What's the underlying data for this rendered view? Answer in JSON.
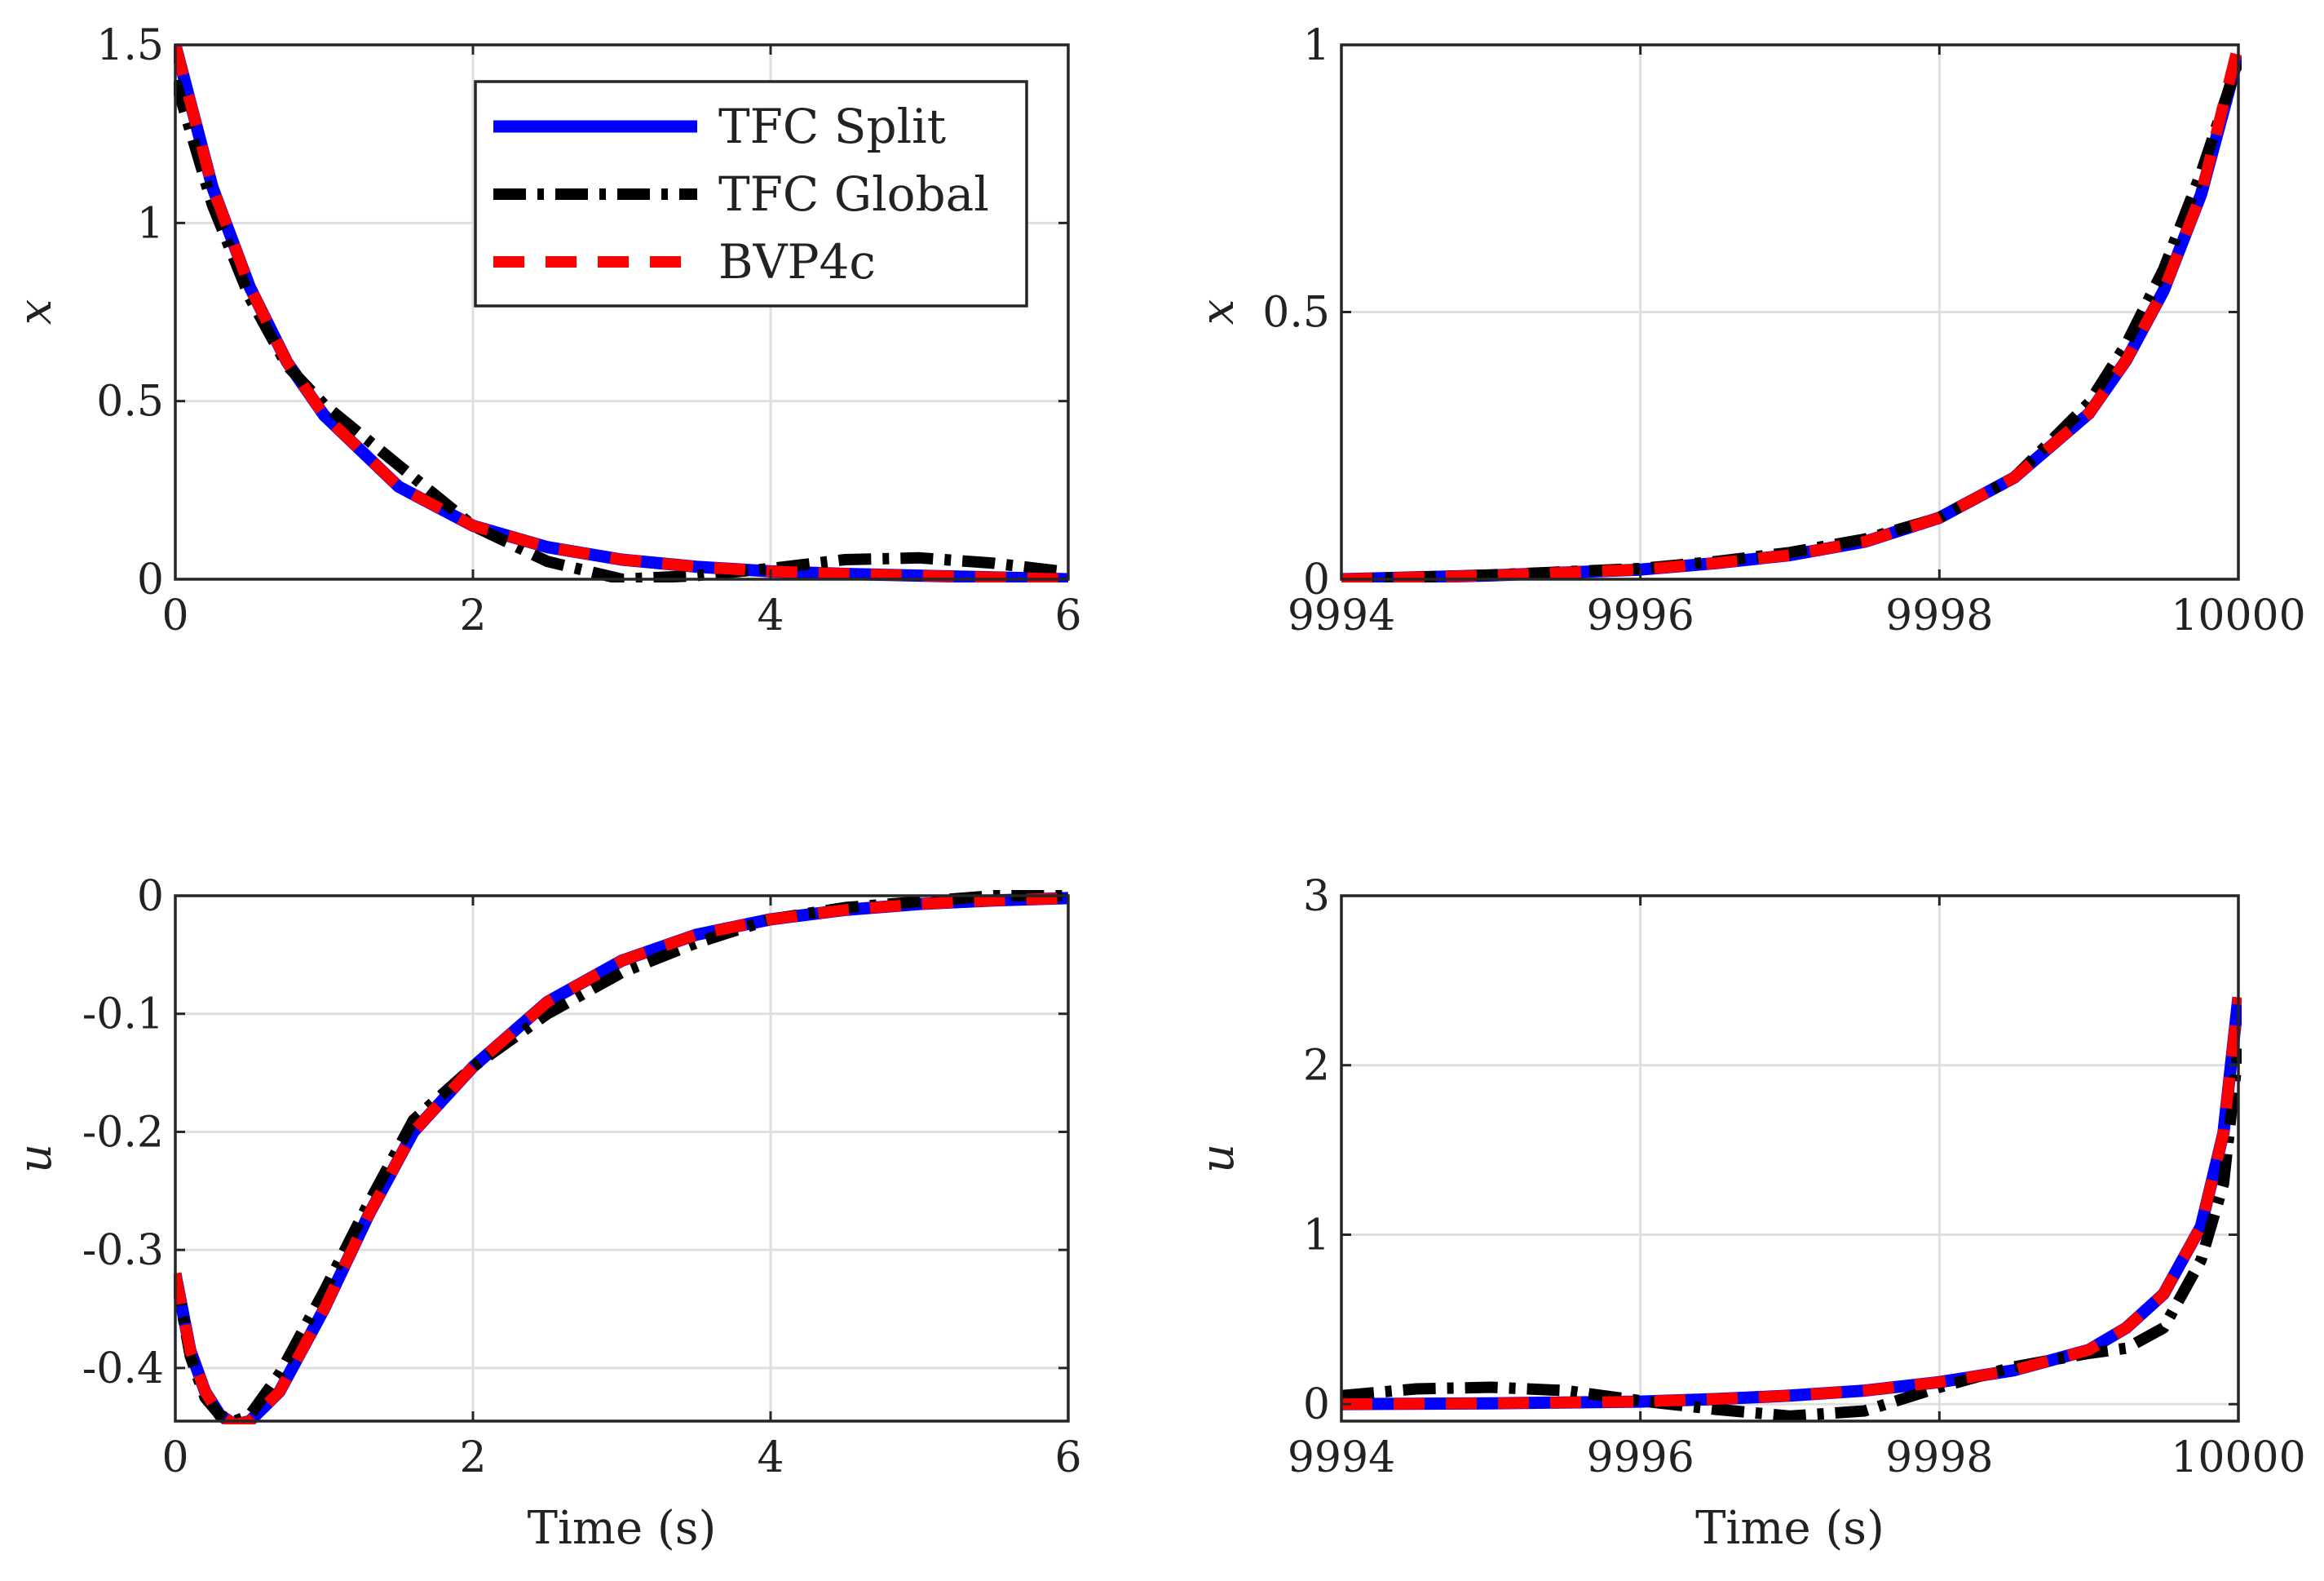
{
  "chart_data": [
    {
      "type": "line",
      "id": "x-early",
      "xlabel": "",
      "ylabel": "x",
      "xlim": [
        0,
        6
      ],
      "ylim": [
        0,
        1.5
      ],
      "xticks": [
        "0",
        "2",
        "4",
        "6"
      ],
      "yticks": [
        "0",
        "0.5",
        "1",
        "1.5"
      ],
      "legend": {
        "placement": "top-right",
        "entries": [
          "TFC Split",
          "TFC Global",
          "BVP4c"
        ]
      },
      "series": [
        {
          "name": "TFC Split",
          "color": "#0000ff",
          "style": "solid",
          "x": [
            0,
            0.25,
            0.5,
            0.75,
            1,
            1.5,
            2,
            2.5,
            3,
            3.5,
            4,
            4.5,
            5,
            5.5,
            6
          ],
          "values": [
            1.5,
            1.1,
            0.82,
            0.61,
            0.46,
            0.26,
            0.15,
            0.09,
            0.055,
            0.035,
            0.022,
            0.015,
            0.01,
            0.005,
            0.0
          ]
        },
        {
          "name": "TFC Global",
          "color": "#000000",
          "style": "dashdot",
          "x": [
            0,
            0.25,
            0.5,
            0.75,
            1,
            1.5,
            2,
            2.5,
            3,
            3.5,
            4,
            4.5,
            5,
            5.5,
            6
          ],
          "values": [
            1.4,
            1.05,
            0.79,
            0.6,
            0.49,
            0.32,
            0.15,
            0.05,
            0.0,
            0.01,
            0.03,
            0.055,
            0.06,
            0.045,
            0.02
          ]
        },
        {
          "name": "BVP4c",
          "color": "#ff0000",
          "style": "dashed",
          "x": [
            0,
            0.25,
            0.5,
            0.75,
            1,
            1.5,
            2,
            2.5,
            3,
            3.5,
            4,
            4.5,
            5,
            5.5,
            6
          ],
          "values": [
            1.5,
            1.1,
            0.82,
            0.61,
            0.46,
            0.26,
            0.15,
            0.09,
            0.055,
            0.035,
            0.022,
            0.015,
            0.01,
            0.005,
            0.0
          ]
        }
      ]
    },
    {
      "type": "line",
      "id": "x-late",
      "xlabel": "",
      "ylabel": "x",
      "xlim": [
        9994,
        10000
      ],
      "ylim": [
        0,
        1
      ],
      "xticks": [
        "9994",
        "9996",
        "9998",
        "10000"
      ],
      "yticks": [
        "0",
        "0.5",
        "1"
      ],
      "series": [
        {
          "name": "TFC Split",
          "color": "#0000ff",
          "style": "solid",
          "x": [
            9994,
            9995,
            9996,
            9996.5,
            9997,
            9997.5,
            9998,
            9998.5,
            9999,
            9999.25,
            9999.5,
            9999.75,
            10000
          ],
          "values": [
            0.0,
            0.007,
            0.018,
            0.03,
            0.045,
            0.07,
            0.115,
            0.19,
            0.31,
            0.41,
            0.54,
            0.72,
            0.98
          ]
        },
        {
          "name": "TFC Global",
          "color": "#000000",
          "style": "dashdot",
          "x": [
            9994,
            9995,
            9996,
            9996.5,
            9997,
            9997.5,
            9998,
            9998.5,
            9999,
            9999.25,
            9999.5,
            9999.75,
            10000
          ],
          "values": [
            0.0,
            0.008,
            0.02,
            0.033,
            0.05,
            0.075,
            0.115,
            0.19,
            0.33,
            0.44,
            0.58,
            0.76,
            0.97
          ]
        },
        {
          "name": "BVP4c",
          "color": "#ff0000",
          "style": "dashed",
          "x": [
            9994,
            9995,
            9996,
            9996.5,
            9997,
            9997.5,
            9998,
            9998.5,
            9999,
            9999.25,
            9999.5,
            9999.75,
            10000
          ],
          "values": [
            0.0,
            0.007,
            0.018,
            0.03,
            0.045,
            0.07,
            0.115,
            0.19,
            0.31,
            0.41,
            0.54,
            0.72,
            1.0
          ]
        }
      ]
    },
    {
      "type": "line",
      "id": "u-early",
      "xlabel": "Time (s)",
      "ylabel": "u",
      "xlim": [
        0,
        6
      ],
      "ylim": [
        -0.445,
        0.0
      ],
      "xticks": [
        "0",
        "2",
        "4",
        "6"
      ],
      "yticks": [
        "-0.4",
        "-0.3",
        "-0.2",
        "-0.1",
        "0"
      ],
      "ytick_values": [
        -0.4,
        -0.3,
        -0.2,
        -0.1,
        0
      ],
      "series": [
        {
          "name": "TFC Split",
          "color": "#0000ff",
          "style": "solid",
          "x": [
            0,
            0.1,
            0.2,
            0.3,
            0.4,
            0.5,
            0.7,
            1,
            1.3,
            1.6,
            2,
            2.5,
            3,
            3.5,
            4,
            4.5,
            5,
            5.5,
            6
          ],
          "values": [
            -0.32,
            -0.385,
            -0.42,
            -0.44,
            -0.448,
            -0.445,
            -0.42,
            -0.35,
            -0.27,
            -0.2,
            -0.145,
            -0.09,
            -0.055,
            -0.033,
            -0.02,
            -0.012,
            -0.007,
            -0.004,
            -0.002
          ]
        },
        {
          "name": "TFC Global",
          "color": "#000000",
          "style": "dashdot",
          "x": [
            0,
            0.1,
            0.2,
            0.3,
            0.4,
            0.5,
            0.7,
            1,
            1.3,
            1.6,
            2,
            2.5,
            3,
            3.5,
            4,
            4.5,
            5,
            5.5,
            6
          ],
          "values": [
            -0.32,
            -0.39,
            -0.425,
            -0.44,
            -0.445,
            -0.44,
            -0.405,
            -0.335,
            -0.26,
            -0.19,
            -0.145,
            -0.1,
            -0.065,
            -0.04,
            -0.02,
            -0.01,
            -0.005,
            0.0,
            0.0
          ]
        },
        {
          "name": "BVP4c",
          "color": "#ff0000",
          "style": "dashed",
          "x": [
            0,
            0.1,
            0.2,
            0.3,
            0.4,
            0.5,
            0.7,
            1,
            1.3,
            1.6,
            2,
            2.5,
            3,
            3.5,
            4,
            4.5,
            5,
            5.5,
            6
          ],
          "values": [
            -0.32,
            -0.385,
            -0.42,
            -0.44,
            -0.448,
            -0.445,
            -0.42,
            -0.35,
            -0.27,
            -0.2,
            -0.145,
            -0.09,
            -0.055,
            -0.033,
            -0.02,
            -0.012,
            -0.007,
            -0.004,
            -0.002
          ]
        }
      ]
    },
    {
      "type": "line",
      "id": "u-late",
      "xlabel": "Time (s)",
      "ylabel": "u",
      "xlim": [
        9994,
        10000
      ],
      "ylim": [
        -0.1,
        3
      ],
      "xticks": [
        "9994",
        "9996",
        "9998",
        "10000"
      ],
      "yticks": [
        "0",
        "1",
        "2",
        "3"
      ],
      "series": [
        {
          "name": "TFC Split",
          "color": "#0000ff",
          "style": "solid",
          "x": [
            9994,
            9995,
            9996,
            9996.5,
            9997,
            9997.5,
            9998,
            9998.5,
            9999,
            9999.25,
            9999.5,
            9999.75,
            9999.9,
            10000
          ],
          "values": [
            0.0,
            0.005,
            0.015,
            0.03,
            0.05,
            0.08,
            0.13,
            0.2,
            0.32,
            0.45,
            0.65,
            1.05,
            1.6,
            2.4
          ]
        },
        {
          "name": "TFC Global",
          "color": "#000000",
          "style": "dashdot",
          "x": [
            9994,
            9994.5,
            9995,
            9995.5,
            9996,
            9996.5,
            9997,
            9997.5,
            9998,
            9998.5,
            9999,
            9999.25,
            9999.5,
            9999.75,
            9999.9,
            10000
          ],
          "values": [
            0.05,
            0.09,
            0.1,
            0.08,
            0.02,
            -0.03,
            -0.07,
            -0.04,
            0.1,
            0.22,
            0.3,
            0.33,
            0.45,
            0.85,
            1.3,
            2.1
          ]
        },
        {
          "name": "BVP4c",
          "color": "#ff0000",
          "style": "dashed",
          "x": [
            9994,
            9995,
            9996,
            9996.5,
            9997,
            9997.5,
            9998,
            9998.5,
            9999,
            9999.25,
            9999.5,
            9999.75,
            9999.9,
            10000
          ],
          "values": [
            0.0,
            0.005,
            0.015,
            0.03,
            0.05,
            0.08,
            0.13,
            0.2,
            0.32,
            0.45,
            0.65,
            1.05,
            1.6,
            2.4
          ]
        }
      ]
    }
  ]
}
